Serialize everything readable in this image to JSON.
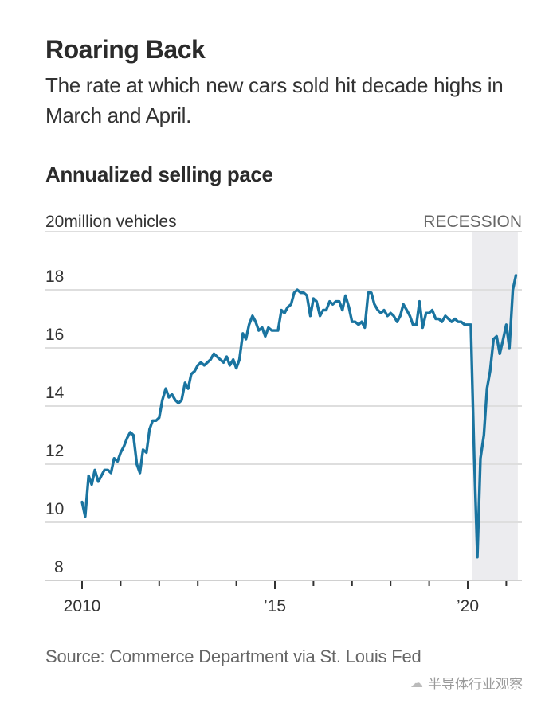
{
  "header": {
    "title": "Roaring Back",
    "subtitle": "The rate at which new cars sold hit decade highs in March and April."
  },
  "footer": {
    "source": "Source: Commerce Department via St. Louis Fed",
    "watermark": "半导体行业观察",
    "watermark_icon": "wechat-icon"
  },
  "colors": {
    "line": "#1a74a0",
    "recession": "#ececef",
    "grid": "#dedede",
    "axis": "#333333"
  },
  "chart_data": {
    "type": "line",
    "title": "Annualized selling pace",
    "ylabel": "million vehicles",
    "unit_label_prefix": "20",
    "unit_label": "20million vehicles",
    "ylim": [
      8,
      20
    ],
    "yticks": [
      8,
      10,
      12,
      14,
      16,
      18,
      20
    ],
    "ytick_labels": [
      "8",
      "10",
      "12",
      "14",
      "16",
      "18",
      ""
    ],
    "xlim": [
      2010.0,
      2021.35
    ],
    "xticks": [
      2010,
      2011,
      2012,
      2013,
      2014,
      2015,
      2016,
      2017,
      2018,
      2019,
      2020,
      2021
    ],
    "xtick_labels": [
      {
        "x": 2010,
        "label": "2010"
      },
      {
        "x": 2015,
        "label": "’15"
      },
      {
        "x": 2020,
        "label": "’20"
      }
    ],
    "grid": true,
    "annotations": [
      {
        "type": "shaded-region",
        "label": "RECESSION",
        "x_start": 2020.12,
        "x_end": 2021.3
      }
    ],
    "series": [
      {
        "name": "Annualized selling pace",
        "x": [
          2010.0,
          2010.08,
          2010.17,
          2010.25,
          2010.33,
          2010.42,
          2010.5,
          2010.58,
          2010.67,
          2010.75,
          2010.83,
          2010.92,
          2011.0,
          2011.08,
          2011.17,
          2011.25,
          2011.33,
          2011.42,
          2011.5,
          2011.58,
          2011.67,
          2011.75,
          2011.83,
          2011.92,
          2012.0,
          2012.08,
          2012.17,
          2012.25,
          2012.33,
          2012.42,
          2012.5,
          2012.58,
          2012.67,
          2012.75,
          2012.83,
          2012.92,
          2013.0,
          2013.08,
          2013.17,
          2013.25,
          2013.33,
          2013.42,
          2013.5,
          2013.58,
          2013.67,
          2013.75,
          2013.83,
          2013.92,
          2014.0,
          2014.08,
          2014.17,
          2014.25,
          2014.33,
          2014.42,
          2014.5,
          2014.58,
          2014.67,
          2014.75,
          2014.83,
          2014.92,
          2015.0,
          2015.08,
          2015.17,
          2015.25,
          2015.33,
          2015.42,
          2015.5,
          2015.58,
          2015.67,
          2015.75,
          2015.83,
          2015.92,
          2016.0,
          2016.08,
          2016.17,
          2016.25,
          2016.33,
          2016.42,
          2016.5,
          2016.58,
          2016.67,
          2016.75,
          2016.83,
          2016.92,
          2017.0,
          2017.08,
          2017.17,
          2017.25,
          2017.33,
          2017.42,
          2017.5,
          2017.58,
          2017.67,
          2017.75,
          2017.83,
          2017.92,
          2018.0,
          2018.08,
          2018.17,
          2018.25,
          2018.33,
          2018.42,
          2018.5,
          2018.58,
          2018.67,
          2018.75,
          2018.83,
          2018.92,
          2019.0,
          2019.08,
          2019.17,
          2019.25,
          2019.33,
          2019.42,
          2019.5,
          2019.58,
          2019.67,
          2019.75,
          2019.83,
          2019.92,
          2020.0,
          2020.08,
          2020.17,
          2020.25,
          2020.33,
          2020.42,
          2020.5,
          2020.58,
          2020.67,
          2020.75,
          2020.83,
          2020.92,
          2021.0,
          2021.08,
          2021.17,
          2021.25
        ],
        "values": [
          10.7,
          10.2,
          11.6,
          11.3,
          11.8,
          11.4,
          11.6,
          11.8,
          11.8,
          11.7,
          12.2,
          12.1,
          12.4,
          12.6,
          12.9,
          13.1,
          13.0,
          12.0,
          11.7,
          12.5,
          12.4,
          13.2,
          13.5,
          13.5,
          13.6,
          14.2,
          14.6,
          14.3,
          14.4,
          14.2,
          14.1,
          14.2,
          14.8,
          14.6,
          15.1,
          15.2,
          15.4,
          15.5,
          15.4,
          15.5,
          15.6,
          15.8,
          15.7,
          15.6,
          15.5,
          15.7,
          15.4,
          15.6,
          15.3,
          15.6,
          16.5,
          16.3,
          16.8,
          17.1,
          16.9,
          16.6,
          16.7,
          16.4,
          16.7,
          16.6,
          16.6,
          16.6,
          17.3,
          17.2,
          17.4,
          17.5,
          17.9,
          18.0,
          17.9,
          17.9,
          17.8,
          17.1,
          17.7,
          17.6,
          17.1,
          17.3,
          17.3,
          17.6,
          17.5,
          17.6,
          17.6,
          17.3,
          17.8,
          17.4,
          16.9,
          16.9,
          16.8,
          16.9,
          16.7,
          17.9,
          17.9,
          17.5,
          17.3,
          17.2,
          17.3,
          17.1,
          17.2,
          17.1,
          16.9,
          17.1,
          17.5,
          17.3,
          17.1,
          16.8,
          16.8,
          17.6,
          16.7,
          17.2,
          17.2,
          17.3,
          17.0,
          17.0,
          16.9,
          17.1,
          17.0,
          16.9,
          17.0,
          16.9,
          16.9,
          16.8,
          16.8,
          16.8,
          12.2,
          8.8,
          12.2,
          13.0,
          14.6,
          15.2,
          16.3,
          16.4,
          15.8,
          16.3,
          16.8,
          16.0,
          18.0,
          18.5
        ]
      }
    ]
  }
}
